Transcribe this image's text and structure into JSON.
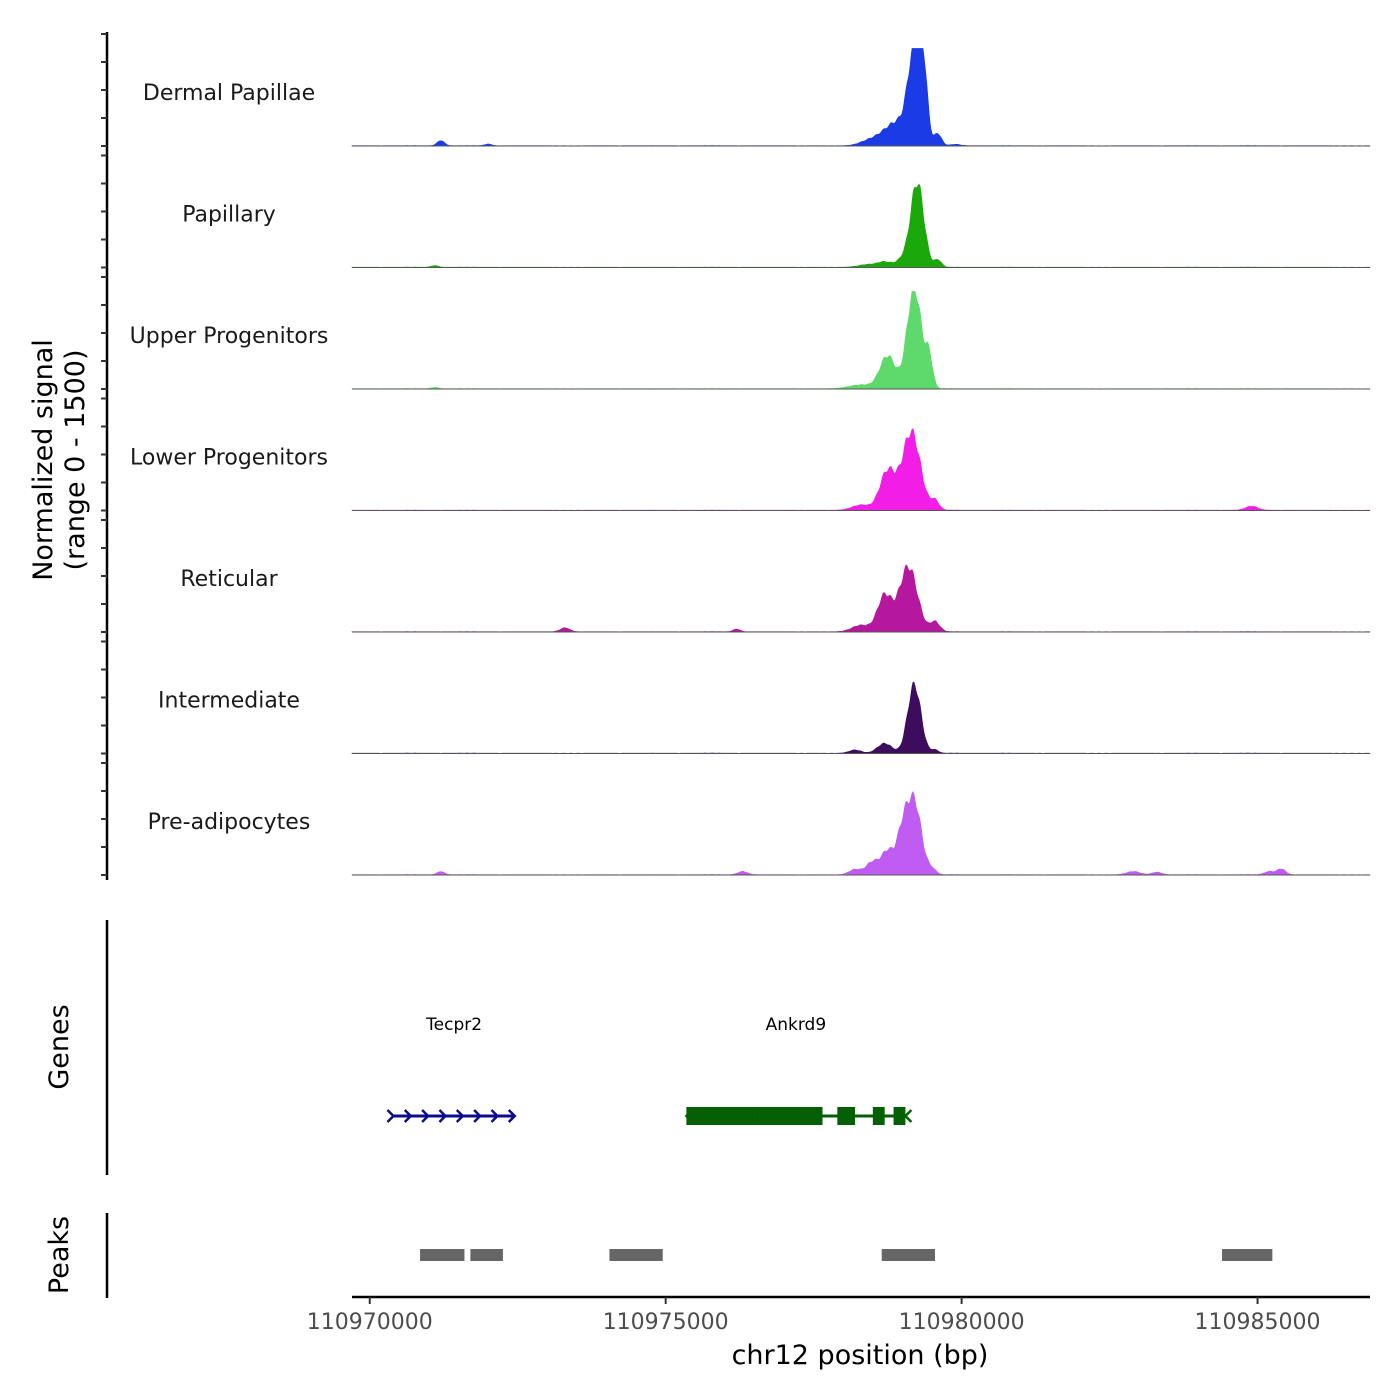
{
  "chart_data": {
    "type": "area",
    "chromosome": "chr12",
    "xlabel": "chr12 position (bp)",
    "ylabel_line1": "Normalized signal",
    "ylabel_line2": "(range 0 - 1500)",
    "ylim": [
      0,
      1500
    ],
    "xlim": [
      110969700,
      110986900
    ],
    "x_ticks": [
      110970000,
      110975000,
      110980000,
      110985000
    ],
    "x_tick_labels": [
      "110970000",
      "110975000",
      "110980000",
      "110985000"
    ],
    "tracks": [
      {
        "name": "Dermal Papillae",
        "color": "#1a3be6",
        "bumps": [
          [
            110971200,
            60,
            80
          ],
          [
            110972000,
            60,
            25
          ],
          [
            110978400,
            150,
            50
          ],
          [
            110978700,
            200,
            90
          ],
          [
            110979000,
            240,
            350
          ],
          [
            110979200,
            100,
            1250
          ],
          [
            110979350,
            70,
            1050
          ],
          [
            110979600,
            60,
            170
          ],
          [
            110979900,
            80,
            20
          ]
        ]
      },
      {
        "name": "Papillary",
        "color": "#1aa80a",
        "bumps": [
          [
            110971100,
            60,
            25
          ],
          [
            110978400,
            150,
            40
          ],
          [
            110978700,
            120,
            80
          ],
          [
            110979000,
            100,
            110
          ],
          [
            110979250,
            110,
            1300
          ],
          [
            110979600,
            60,
            110
          ]
        ]
      },
      {
        "name": "Upper Progenitors",
        "color": "#5ed96b",
        "bumps": [
          [
            110971100,
            60,
            20
          ],
          [
            110978300,
            200,
            60
          ],
          [
            110978750,
            130,
            500
          ],
          [
            110979200,
            120,
            1550
          ],
          [
            110979450,
            60,
            450
          ]
        ]
      },
      {
        "name": "Lower Progenitors",
        "color": "#f21ee8",
        "bumps": [
          [
            110978300,
            150,
            80
          ],
          [
            110978750,
            130,
            600
          ],
          [
            110979150,
            150,
            1200
          ],
          [
            110979550,
            70,
            140
          ],
          [
            110984900,
            100,
            60
          ]
        ]
      },
      {
        "name": "Reticular",
        "color": "#b5189e",
        "bumps": [
          [
            110973300,
            80,
            60
          ],
          [
            110976200,
            60,
            40
          ],
          [
            110978300,
            150,
            100
          ],
          [
            110978700,
            120,
            550
          ],
          [
            110979100,
            150,
            1000
          ],
          [
            110979550,
            80,
            150
          ]
        ]
      },
      {
        "name": "Intermediate",
        "color": "#3d0c5c",
        "bumps": [
          [
            110978200,
            100,
            50
          ],
          [
            110978700,
            120,
            150
          ],
          [
            110979200,
            110,
            1050
          ],
          [
            110979550,
            60,
            50
          ]
        ]
      },
      {
        "name": "Pre-adipocytes",
        "color": "#c05cf2",
        "bumps": [
          [
            110971200,
            60,
            50
          ],
          [
            110976300,
            80,
            50
          ],
          [
            110978200,
            100,
            80
          ],
          [
            110978500,
            110,
            200
          ],
          [
            110978750,
            100,
            350
          ],
          [
            110979000,
            100,
            600
          ],
          [
            110979200,
            120,
            1100
          ],
          [
            110979500,
            70,
            80
          ],
          [
            110982900,
            110,
            50
          ],
          [
            110983300,
            80,
            40
          ],
          [
            110985200,
            80,
            50
          ],
          [
            110985400,
            70,
            90
          ]
        ]
      }
    ],
    "genes_label": "Genes",
    "genes": [
      {
        "name": "Tecpr2",
        "start": 110970400,
        "end": 110972450,
        "strand": "+",
        "color": "#0d0d8c"
      },
      {
        "name": "Ankrd9",
        "start": 110975350,
        "end": 110979050,
        "strand": "-",
        "color": "#056005",
        "exons": [
          [
            110975350,
            110976500
          ],
          [
            110976500,
            110977650
          ],
          [
            110977900,
            110978200
          ],
          [
            110978500,
            110978700
          ],
          [
            110978850,
            110979050
          ]
        ]
      }
    ],
    "peaks_label": "Peaks",
    "peaks_color": "#666666",
    "peaks": [
      [
        110970850,
        110971600
      ],
      [
        110971700,
        110972250
      ],
      [
        110974050,
        110974950
      ],
      [
        110978650,
        110979550
      ],
      [
        110984400,
        110985250
      ]
    ]
  }
}
